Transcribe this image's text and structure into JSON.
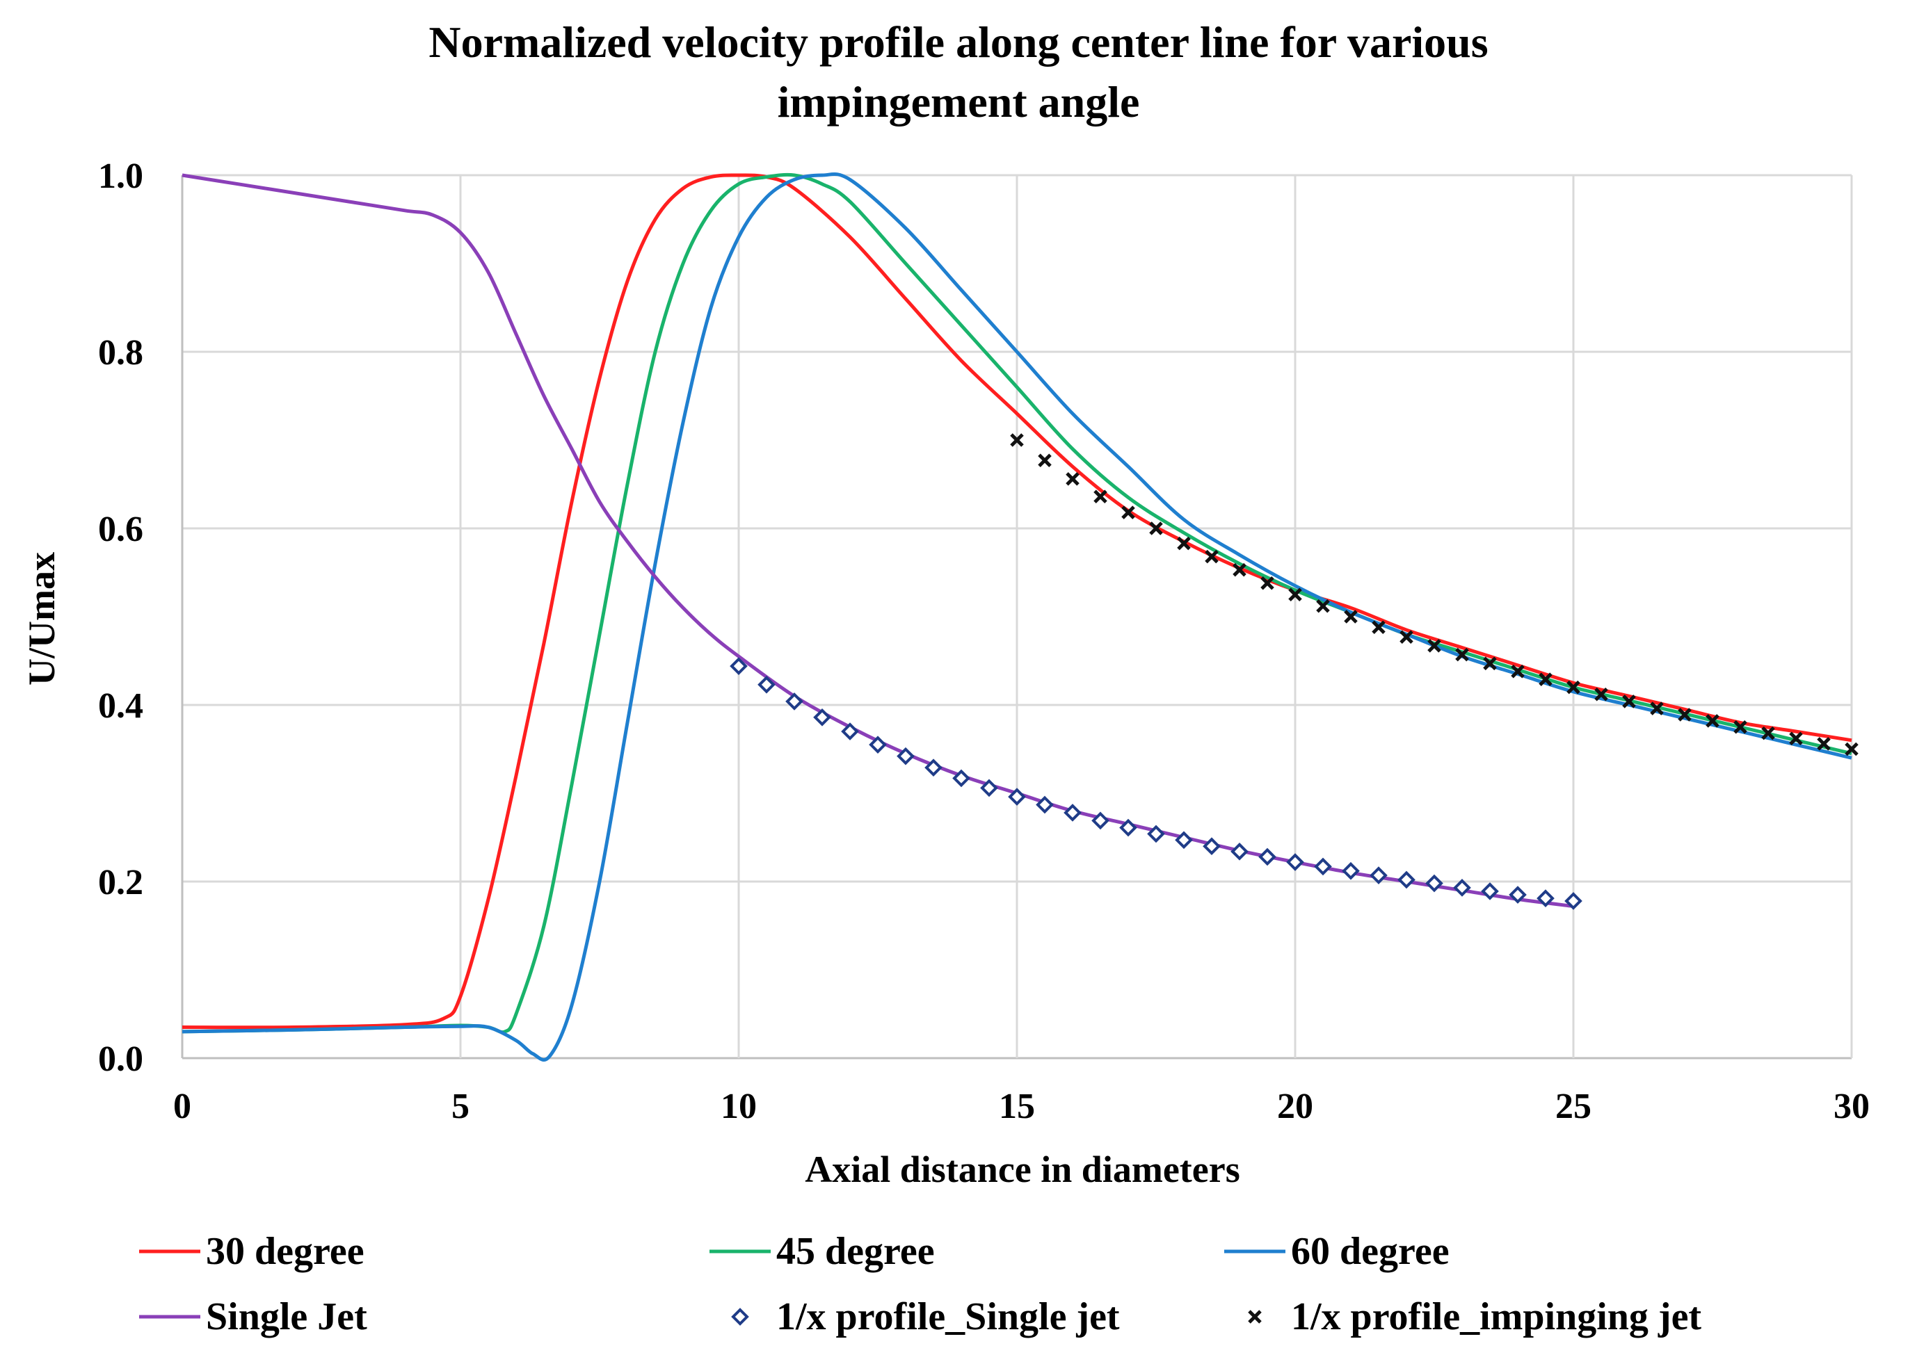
{
  "chart_data": {
    "type": "line",
    "title": [
      "Normalized velocity profile along center line for various",
      "impingement angle"
    ],
    "xlabel": "Axial distance in diameters",
    "ylabel": "U/Umax",
    "xlim": [
      0,
      30
    ],
    "ylim": [
      0,
      1.0
    ],
    "xticks": [
      0,
      5,
      10,
      15,
      20,
      25,
      30
    ],
    "xtick_labels": [
      "0",
      "5",
      "10",
      "15",
      "20",
      "25",
      "30"
    ],
    "yticks": [
      0,
      0.2,
      0.4,
      0.6,
      0.8,
      1.0
    ],
    "ytick_labels": [
      "0.0",
      "0.2",
      "0.4",
      "0.6",
      "0.8",
      "1.0"
    ],
    "grid": true,
    "legend_position": "bottom",
    "series": [
      {
        "name": "30 degree",
        "style": "line",
        "color": "#ff1f1f",
        "x": [
          0,
          2,
          4,
          4.7,
          5.0,
          5.5,
          6,
          6.5,
          7,
          7.5,
          8,
          8.5,
          9,
          9.5,
          10,
          10.5,
          11,
          12,
          13,
          14,
          15,
          16,
          17,
          18,
          19,
          20,
          21,
          22,
          23,
          24,
          25,
          26,
          27,
          28,
          29,
          30
        ],
        "y": [
          0.035,
          0.035,
          0.038,
          0.045,
          0.07,
          0.18,
          0.32,
          0.47,
          0.63,
          0.77,
          0.88,
          0.95,
          0.985,
          0.998,
          1.0,
          0.998,
          0.985,
          0.93,
          0.86,
          0.79,
          0.73,
          0.67,
          0.62,
          0.585,
          0.555,
          0.53,
          0.51,
          0.485,
          0.465,
          0.445,
          0.425,
          0.41,
          0.395,
          0.38,
          0.37,
          0.36
        ]
      },
      {
        "name": "45 degree",
        "style": "line",
        "color": "#19b36b",
        "x": [
          0,
          2,
          4,
          5,
          5.5,
          5.8,
          6.0,
          6.5,
          7,
          7.5,
          8,
          8.5,
          9,
          9.5,
          10,
          10.5,
          11,
          11.5,
          12,
          13,
          14,
          15,
          16,
          17,
          18,
          19,
          20,
          21,
          22,
          23,
          24,
          25,
          26,
          27,
          28,
          29,
          30
        ],
        "y": [
          0.03,
          0.032,
          0.035,
          0.037,
          0.035,
          0.03,
          0.05,
          0.15,
          0.31,
          0.48,
          0.65,
          0.8,
          0.9,
          0.96,
          0.99,
          0.998,
          1.0,
          0.99,
          0.97,
          0.9,
          0.83,
          0.76,
          0.69,
          0.635,
          0.595,
          0.56,
          0.53,
          0.505,
          0.48,
          0.46,
          0.44,
          0.42,
          0.405,
          0.39,
          0.375,
          0.36,
          0.345
        ]
      },
      {
        "name": "60 degree",
        "style": "line",
        "color": "#1f7fcf",
        "x": [
          0,
          2,
          4,
          5,
          5.5,
          6,
          6.3,
          6.6,
          7,
          7.5,
          8,
          8.5,
          9,
          9.5,
          10,
          10.5,
          11,
          11.5,
          12,
          13,
          14,
          15,
          16,
          17,
          18,
          19,
          20,
          21,
          22,
          23,
          24,
          25,
          26,
          27,
          28,
          29,
          30
        ],
        "y": [
          0.03,
          0.032,
          0.035,
          0.036,
          0.035,
          0.02,
          0.005,
          0.002,
          0.06,
          0.2,
          0.38,
          0.56,
          0.72,
          0.85,
          0.93,
          0.975,
          0.995,
          1.0,
          0.995,
          0.94,
          0.87,
          0.8,
          0.73,
          0.67,
          0.61,
          0.57,
          0.535,
          0.505,
          0.48,
          0.455,
          0.435,
          0.415,
          0.4,
          0.385,
          0.37,
          0.355,
          0.34
        ]
      },
      {
        "name": "Single Jet",
        "style": "line",
        "color": "#8a3fb8",
        "x": [
          0,
          1,
          2,
          3,
          4,
          4.5,
          5,
          5.5,
          6,
          6.5,
          7,
          7.5,
          8,
          8.5,
          9,
          9.5,
          10,
          11,
          12,
          13,
          14,
          15,
          16,
          17,
          18,
          19,
          20,
          21,
          22,
          23,
          24,
          25
        ],
        "y": [
          1.0,
          0.99,
          0.98,
          0.97,
          0.96,
          0.955,
          0.935,
          0.89,
          0.82,
          0.75,
          0.69,
          0.63,
          0.585,
          0.545,
          0.51,
          0.48,
          0.455,
          0.41,
          0.375,
          0.345,
          0.32,
          0.3,
          0.28,
          0.265,
          0.25,
          0.235,
          0.222,
          0.21,
          0.2,
          0.19,
          0.18,
          0.172
        ]
      },
      {
        "name": "1/x profile_Single jet",
        "style": "marker",
        "marker": "diamond",
        "color": "#1f3c88",
        "x": [
          10,
          10.5,
          11,
          11.5,
          12,
          12.5,
          13,
          13.5,
          14,
          14.5,
          15,
          15.5,
          16,
          16.5,
          17,
          17.5,
          18,
          18.5,
          19,
          19.5,
          20,
          20.5,
          21,
          21.5,
          22,
          22.5,
          23,
          23.5,
          24,
          24.5,
          25
        ],
        "y": [
          0.444,
          0.423,
          0.404,
          0.386,
          0.37,
          0.355,
          0.342,
          0.329,
          0.317,
          0.306,
          0.296,
          0.287,
          0.278,
          0.269,
          0.261,
          0.254,
          0.247,
          0.24,
          0.234,
          0.228,
          0.222,
          0.217,
          0.212,
          0.207,
          0.202,
          0.198,
          0.193,
          0.189,
          0.185,
          0.181,
          0.178
        ]
      },
      {
        "name": "1/x profile_impinging jet",
        "style": "marker",
        "marker": "x",
        "color": "#111111",
        "x": [
          15,
          15.5,
          16,
          16.5,
          17,
          17.5,
          18,
          18.5,
          19,
          19.5,
          20,
          20.5,
          21,
          21.5,
          22,
          22.5,
          23,
          23.5,
          24,
          24.5,
          25,
          25.5,
          26,
          26.5,
          27,
          27.5,
          28,
          28.5,
          29,
          29.5,
          30
        ],
        "y": [
          0.7,
          0.677,
          0.656,
          0.636,
          0.618,
          0.6,
          0.583,
          0.568,
          0.553,
          0.538,
          0.525,
          0.512,
          0.5,
          0.488,
          0.477,
          0.467,
          0.457,
          0.447,
          0.438,
          0.429,
          0.42,
          0.412,
          0.404,
          0.396,
          0.389,
          0.382,
          0.375,
          0.368,
          0.362,
          0.356,
          0.35
        ]
      }
    ]
  }
}
